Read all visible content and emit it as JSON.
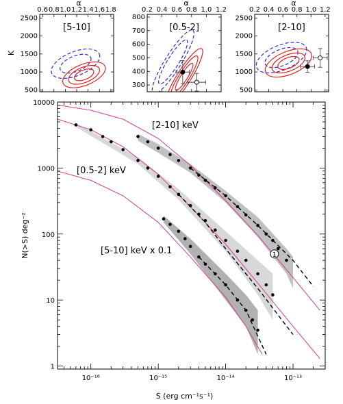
{
  "chart_data": [
    {
      "type": "contour",
      "panel_label": "[5-10]",
      "xlabel": "α",
      "ylabel": "K",
      "xlim": [
        0.55,
        1.85
      ],
      "ylim": [
        450,
        2600
      ],
      "xticks": [
        "0.6",
        "0.8",
        "1.0",
        "1.2",
        "1.4",
        "1.6",
        "1.8"
      ],
      "yticks": [
        "500",
        "1000",
        "1500",
        "2000",
        "2500"
      ],
      "contour_sets": [
        {
          "color": "#2a2ae0",
          "style": "dashed",
          "center": [
            1.18,
            1230
          ],
          "levels": [
            0.8,
            1.25
          ]
        },
        {
          "color": "#e02020",
          "style": "solid",
          "center": [
            1.33,
            920
          ],
          "levels": [
            0.5,
            0.8,
            1.1
          ]
        }
      ],
      "points": []
    },
    {
      "type": "contour",
      "panel_label": "[0.5-2]",
      "xlabel": "α",
      "ylabel": "",
      "xlim": [
        0.2,
        1.2
      ],
      "ylim": [
        250,
        820
      ],
      "xticks": [
        "0.2",
        "0.4",
        "0.6",
        "0.8",
        "1.0",
        "1.2"
      ],
      "yticks": [
        "300",
        "400",
        "500",
        "600",
        "700",
        "800"
      ],
      "contour_sets": [
        {
          "color": "#2a2ae0",
          "style": "dashed",
          "center": [
            0.55,
            470
          ],
          "levels": [
            0.9,
            1.3
          ]
        },
        {
          "color": "#e02020",
          "style": "solid",
          "center": [
            0.7,
            360
          ],
          "levels": [
            0.55,
            0.85,
            1.15
          ]
        }
      ],
      "points": [
        {
          "x": 0.68,
          "y": 395,
          "xerr": 0.09,
          "yerr": 85,
          "filled": true
        },
        {
          "x": 0.87,
          "y": 320,
          "xerr": 0.12,
          "yerr": 65,
          "filled": false
        }
      ]
    },
    {
      "type": "contour",
      "panel_label": "[2-10]",
      "xlabel": "α",
      "ylabel": "",
      "xlim": [
        0.2,
        1.25
      ],
      "ylim": [
        450,
        2600
      ],
      "xticks": [
        "0.2",
        "0.4",
        "0.6",
        "0.8",
        "1.0",
        "1.2"
      ],
      "yticks": [
        "500",
        "1000",
        "1500",
        "2000",
        "2500"
      ],
      "contour_sets": [
        {
          "color": "#2a2ae0",
          "style": "dashed",
          "center": [
            0.58,
            1400
          ],
          "levels": [
            0.85,
            1.3
          ]
        },
        {
          "color": "#e02020",
          "style": "solid",
          "center": [
            0.68,
            1250
          ],
          "levels": [
            0.55,
            0.85,
            1.2
          ]
        }
      ],
      "points": [
        {
          "x": 0.95,
          "y": 1150,
          "xerr": 0.1,
          "yerr": 160,
          "filled": true
        },
        {
          "x": 1.13,
          "y": 1390,
          "xerr": 0.1,
          "yerr": 260,
          "filled": false
        }
      ]
    },
    {
      "type": "scatter",
      "xlabel": "S (erg cm⁻¹s⁻¹)",
      "ylabel": "N(>S) deg⁻²",
      "xscale": "log",
      "yscale": "log",
      "xlim": [
        3.2e-17,
        3e-13
      ],
      "ylim": [
        0.9,
        10000
      ],
      "xticks": [
        "10⁻¹⁶",
        "10⁻¹⁵",
        "10⁻¹⁴",
        "10⁻¹³"
      ],
      "yticks": [
        "1",
        "10",
        "100",
        "1000",
        "10000"
      ],
      "series": [
        {
          "name": "[2-10] keV",
          "color": "#000000",
          "points": [
            [
              5e-16,
              3000
            ],
            [
              7e-16,
              2500
            ],
            [
              1e-15,
              2000
            ],
            [
              1.5e-15,
              1600
            ],
            [
              2e-15,
              1300
            ],
            [
              3e-15,
              1000
            ],
            [
              4e-15,
              780
            ],
            [
              5e-15,
              650
            ],
            [
              7e-15,
              500
            ],
            [
              1e-14,
              380
            ],
            [
              1.5e-14,
              260
            ],
            [
              2e-14,
              195
            ],
            [
              3e-14,
              135
            ],
            [
              4e-14,
              100
            ],
            [
              5e-14,
              80
            ],
            [
              6e-14,
              60
            ],
            [
              8e-14,
              40
            ]
          ],
          "band": [
            [
              5e-16,
              2600,
              3300
            ],
            [
              1e-15,
              1700,
              2300
            ],
            [
              3e-15,
              850,
              1150
            ],
            [
              1e-14,
              300,
              450
            ],
            [
              3e-14,
              90,
              180
            ],
            [
              8e-14,
              25,
              60
            ],
            [
              1e-13,
              15,
              45
            ]
          ],
          "fit": [
            [
              3e-15,
              1000
            ],
            [
              1e-14,
              380
            ],
            [
              3e-14,
              135
            ],
            [
              1e-13,
              40
            ],
            [
              2e-13,
              16
            ]
          ]
        },
        {
          "name": "[0.5-2] keV",
          "color": "#000000",
          "points": [
            [
              6e-17,
              4500
            ],
            [
              1e-16,
              3800
            ],
            [
              1.5e-16,
              3000
            ],
            [
              2e-16,
              2500
            ],
            [
              3e-16,
              1900
            ],
            [
              5e-16,
              1300
            ],
            [
              7e-16,
              1000
            ],
            [
              1e-15,
              750
            ],
            [
              1.5e-15,
              520
            ],
            [
              2e-15,
              400
            ],
            [
              3e-15,
              270
            ],
            [
              4e-15,
              200
            ],
            [
              5e-15,
              160
            ],
            [
              7e-15,
              115
            ],
            [
              1e-14,
              80
            ],
            [
              1.5e-14,
              55
            ],
            [
              2e-14,
              40
            ],
            [
              3e-14,
              25
            ],
            [
              4e-14,
              17
            ],
            [
              5e-14,
              12
            ]
          ],
          "band": [
            [
              6e-17,
              4200,
              4800
            ],
            [
              5e-16,
              1150,
              1450
            ],
            [
              2e-15,
              330,
              480
            ],
            [
              1e-14,
              55,
              110
            ],
            [
              3e-14,
              12,
              40
            ],
            [
              5e-14,
              5,
              25
            ]
          ],
          "fit": [
            [
              2e-15,
              400
            ],
            [
              5e-15,
              150
            ],
            [
              1e-14,
              60
            ],
            [
              3e-14,
              15
            ],
            [
              1e-13,
              3
            ]
          ]
        },
        {
          "name": "[5-10] keV x 0.1",
          "color": "#000000",
          "points": [
            [
              1.2e-15,
              170
            ],
            [
              1.5e-15,
              140
            ],
            [
              2e-15,
              110
            ],
            [
              2.5e-15,
              85
            ],
            [
              3e-15,
              65
            ],
            [
              4e-15,
              45
            ],
            [
              5e-15,
              35
            ],
            [
              7e-15,
              25
            ],
            [
              1e-14,
              17
            ],
            [
              1.5e-14,
              10
            ],
            [
              2e-14,
              7
            ],
            [
              2.5e-14,
              5
            ],
            [
              3e-14,
              3.5
            ]
          ],
          "band": [
            [
              1.2e-15,
              150,
              190
            ],
            [
              3e-15,
              50,
              85
            ],
            [
              1e-14,
              10,
              25
            ],
            [
              2e-14,
              4,
              12
            ],
            [
              3e-14,
              1.5,
              7
            ]
          ],
          "fit": [
            [
              4e-15,
              45
            ],
            [
              1e-14,
              17
            ],
            [
              2e-14,
              7
            ],
            [
              4e-14,
              1.5
            ]
          ]
        }
      ],
      "model_curves": [
        {
          "name": "[2-10] model",
          "color": "#d23c8f",
          "points": [
            [
              3.2e-17,
              9000
            ],
            [
              1e-16,
              7500
            ],
            [
              3e-16,
              5500
            ],
            [
              1e-15,
              2800
            ],
            [
              3e-15,
              1100
            ],
            [
              1e-14,
              320
            ],
            [
              3e-14,
              95
            ],
            [
              1e-13,
              22
            ],
            [
              2.5e-13,
              7
            ]
          ]
        },
        {
          "name": "[0.5-2] model",
          "color": "#d23c8f",
          "points": [
            [
              3.2e-17,
              5500
            ],
            [
              1e-16,
              3800
            ],
            [
              3e-16,
              2100
            ],
            [
              1e-15,
              800
            ],
            [
              3e-15,
              260
            ],
            [
              1e-14,
              70
            ],
            [
              3e-14,
              18
            ],
            [
              1e-13,
              4
            ],
            [
              2.5e-13,
              1.3
            ]
          ]
        },
        {
          "name": "[5-10] model",
          "color": "#d23c8f",
          "points": [
            [
              3.2e-17,
              900
            ],
            [
              1e-16,
              650
            ],
            [
              3e-16,
              380
            ],
            [
              1e-15,
              150
            ],
            [
              3e-15,
              45
            ],
            [
              1e-14,
              11
            ],
            [
              2e-14,
              4
            ],
            [
              3.5e-14,
              1.5
            ]
          ]
        }
      ],
      "annotation_marker": {
        "x": 5.3e-14,
        "y": 50,
        "label": "1"
      }
    }
  ]
}
